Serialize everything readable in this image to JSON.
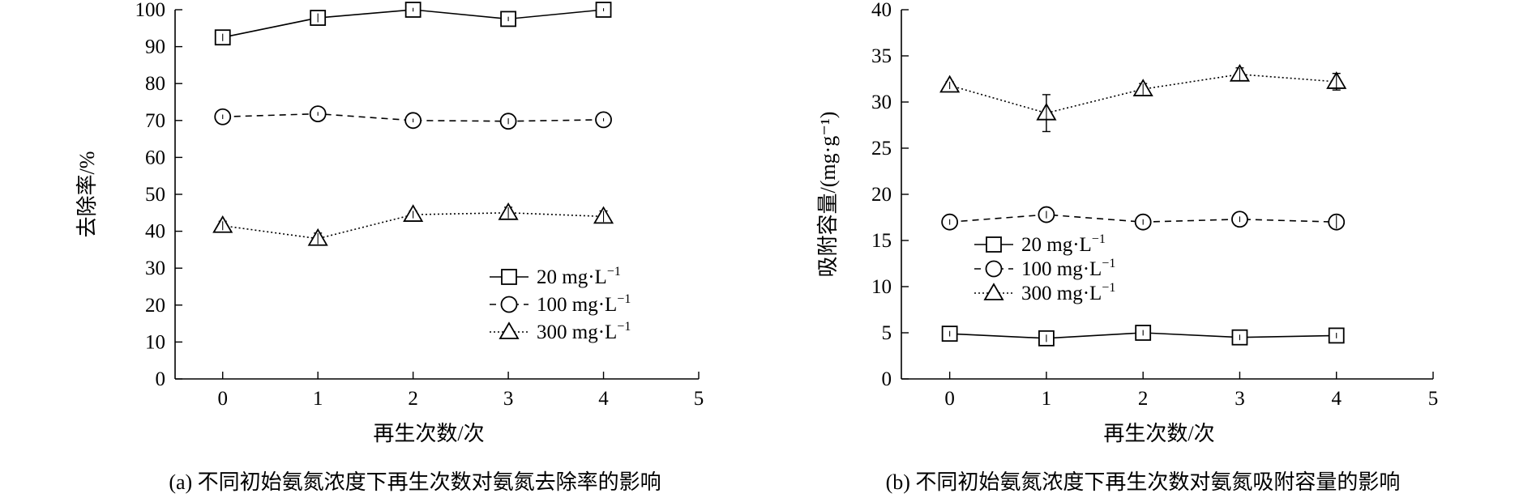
{
  "figure": {
    "panels": [
      {
        "caption": "(a) 不同初始氨氮浓度下再生次数对氨氮去除率的影响"
      },
      {
        "caption": "(b) 不同初始氨氮浓度下再生次数对氨氮吸附容量的影响"
      }
    ]
  },
  "chart_data": [
    {
      "type": "line",
      "title": "",
      "xlabel": "再生次数/次",
      "ylabel": "去除率/%",
      "xlim": [
        -0.5,
        5
      ],
      "ylim": [
        0,
        100
      ],
      "xticks": [
        "0",
        "1",
        "2",
        "3",
        "4",
        "5"
      ],
      "yticks": [
        "0",
        "10",
        "20",
        "30",
        "40",
        "50",
        "60",
        "70",
        "80",
        "90",
        "100"
      ],
      "x": [
        0,
        1,
        2,
        3,
        4
      ],
      "legend": "right",
      "grid": false,
      "series": [
        {
          "name": "20 mg·L⁻¹",
          "unit": "mg·L",
          "exp": "−1",
          "marker": "square",
          "line": "solid",
          "values": [
            92.5,
            97.8,
            100.0,
            97.5,
            100.0
          ],
          "errors": [
            1.0,
            1.2,
            0.5,
            0.6,
            0.4
          ]
        },
        {
          "name": "100 mg·L⁻¹",
          "unit": "mg·L",
          "exp": "−1",
          "marker": "circle",
          "line": "dashed",
          "values": [
            71.0,
            71.8,
            70.0,
            69.8,
            70.2
          ],
          "errors": [
            0.6,
            0.5,
            0.5,
            0.8,
            0.4
          ]
        },
        {
          "name": "300 mg·L⁻¹",
          "unit": "mg·L",
          "exp": "−1",
          "marker": "triangle",
          "line": "dotted",
          "values": [
            41.5,
            38.0,
            44.5,
            45.0,
            44.0
          ],
          "errors": [
            1.2,
            1.5,
            1.0,
            1.5,
            1.5
          ]
        }
      ]
    },
    {
      "type": "line",
      "title": "",
      "xlabel": "再生次数/次",
      "ylabel": "吸附容量/(mg·g⁻¹)",
      "xlim": [
        -0.5,
        5
      ],
      "ylim": [
        0,
        40
      ],
      "xticks": [
        "0",
        "1",
        "2",
        "3",
        "4",
        "5"
      ],
      "yticks": [
        "0",
        "5",
        "10",
        "15",
        "20",
        "25",
        "30",
        "35",
        "40"
      ],
      "x": [
        0,
        1,
        2,
        3,
        4
      ],
      "legend": "center-left",
      "grid": false,
      "series": [
        {
          "name": "20 mg·L⁻¹",
          "unit": "mg·L",
          "exp": "−1",
          "marker": "square",
          "line": "solid",
          "values": [
            4.9,
            4.4,
            5.0,
            4.5,
            4.7
          ],
          "errors": [
            0.3,
            0.4,
            0.3,
            0.3,
            0.3
          ]
        },
        {
          "name": "100 mg·L⁻¹",
          "unit": "mg·L",
          "exp": "−1",
          "marker": "circle",
          "line": "dashed",
          "values": [
            17.0,
            17.8,
            17.0,
            17.3,
            17.0
          ],
          "errors": [
            0.3,
            0.4,
            0.3,
            0.3,
            0.7
          ]
        },
        {
          "name": "300 mg·L⁻¹",
          "unit": "mg·L",
          "exp": "−1",
          "marker": "triangle",
          "line": "dotted",
          "values": [
            31.8,
            28.8,
            31.4,
            33.0,
            32.2
          ],
          "errors": [
            0.4,
            2.0,
            0.6,
            0.7,
            0.9
          ]
        }
      ]
    }
  ]
}
